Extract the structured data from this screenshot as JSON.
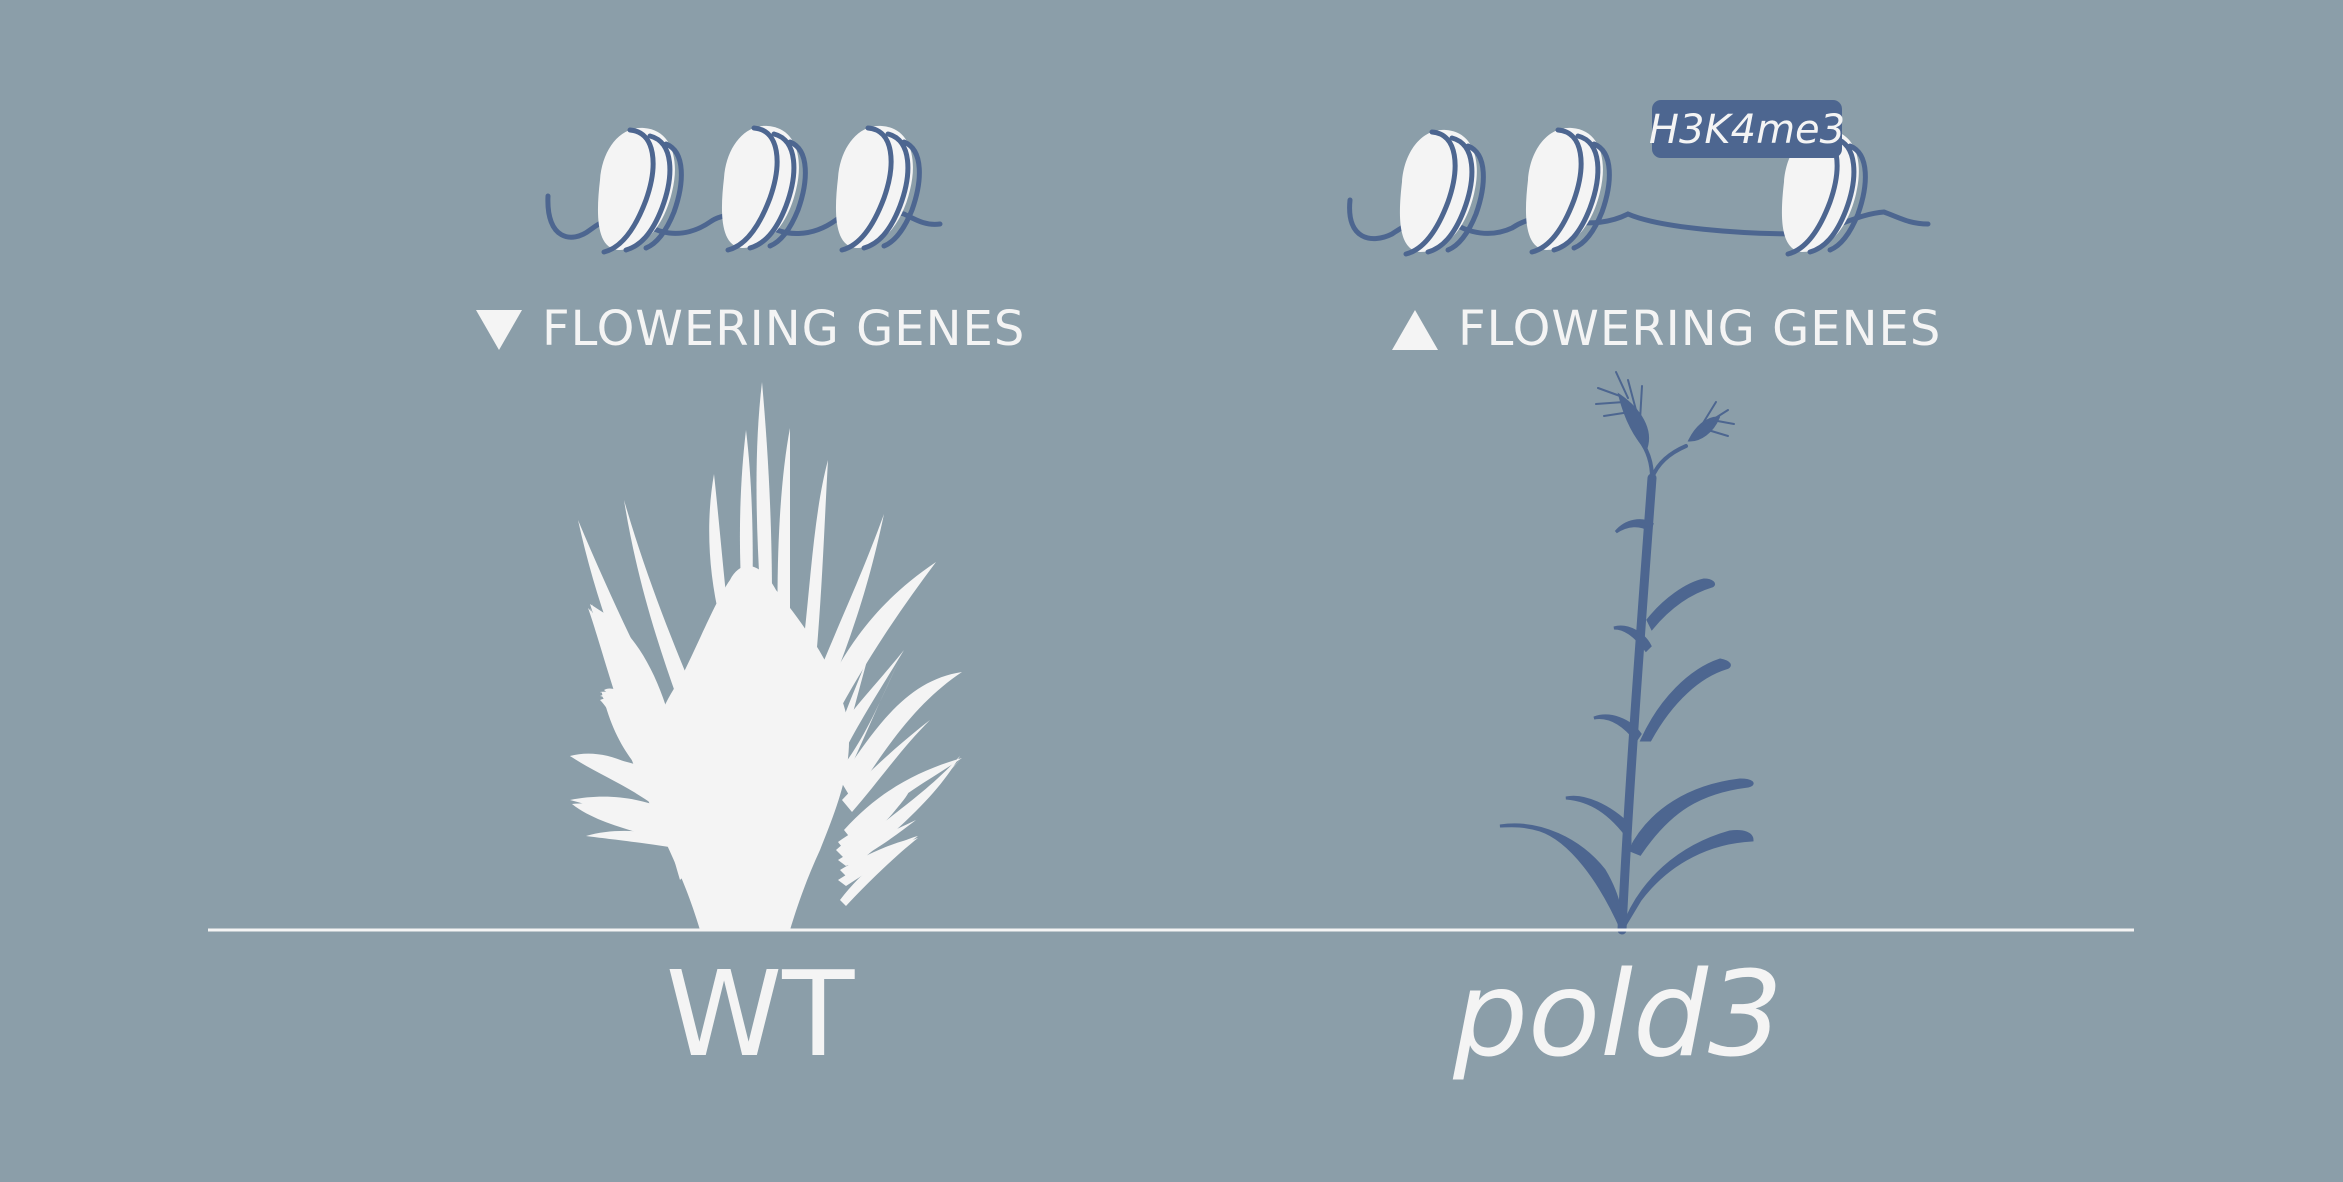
{
  "panels": {
    "wt": {
      "gene_label": "FLOWERING GENES",
      "genotype": "WT"
    },
    "mutant": {
      "gene_label": "FLOWERING GENES",
      "genotype": "pold3",
      "histone_mark": "H3K4me3"
    }
  },
  "colors": {
    "background": "#8b9ea9",
    "ink": "#4d6690",
    "light": "#f4f4f4"
  }
}
